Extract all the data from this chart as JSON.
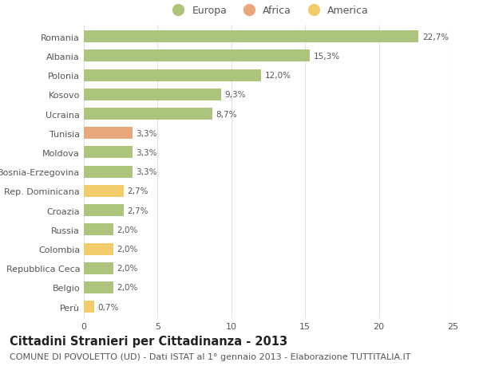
{
  "categories": [
    "Romania",
    "Albania",
    "Polonia",
    "Kosovo",
    "Ucraina",
    "Tunisia",
    "Moldova",
    "Bosnia-Erzegovina",
    "Rep. Dominicana",
    "Croazia",
    "Russia",
    "Colombia",
    "Repubblica Ceca",
    "Belgio",
    "Perù"
  ],
  "values": [
    22.7,
    15.3,
    12.0,
    9.3,
    8.7,
    3.3,
    3.3,
    3.3,
    2.7,
    2.7,
    2.0,
    2.0,
    2.0,
    2.0,
    0.7
  ],
  "labels": [
    "22,7%",
    "15,3%",
    "12,0%",
    "9,3%",
    "8,7%",
    "3,3%",
    "3,3%",
    "3,3%",
    "2,7%",
    "2,7%",
    "2,0%",
    "2,0%",
    "2,0%",
    "2,0%",
    "0,7%"
  ],
  "continents": [
    "Europa",
    "Europa",
    "Europa",
    "Europa",
    "Europa",
    "Africa",
    "Europa",
    "Europa",
    "America",
    "Europa",
    "Europa",
    "America",
    "Europa",
    "Europa",
    "America"
  ],
  "colors": {
    "Europa": "#adc47d",
    "Africa": "#e8a87c",
    "America": "#f2cc6a"
  },
  "title": "Cittadini Stranieri per Cittadinanza - 2013",
  "subtitle": "COMUNE DI POVOLETTO (UD) - Dati ISTAT al 1° gennaio 2013 - Elaborazione TUTTITALIA.IT",
  "xlim": [
    0,
    25
  ],
  "xticks": [
    0,
    5,
    10,
    15,
    20,
    25
  ],
  "background_color": "#ffffff",
  "grid_color": "#e0e0e0",
  "bar_height": 0.62,
  "title_fontsize": 10.5,
  "subtitle_fontsize": 8,
  "label_fontsize": 7.5,
  "tick_fontsize": 8,
  "legend_fontsize": 9,
  "text_color": "#555555",
  "title_color": "#222222"
}
